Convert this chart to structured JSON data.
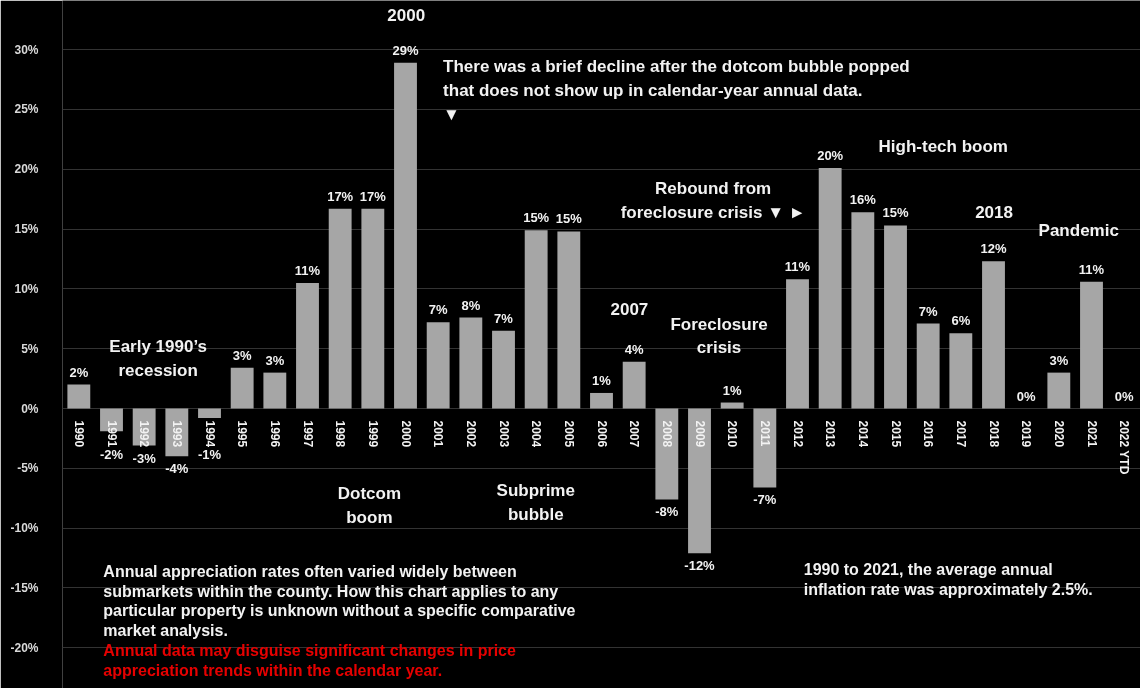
{
  "chart_data": {
    "type": "bar",
    "categories": [
      "1990",
      "1991",
      "1992",
      "1993",
      "1994",
      "1995",
      "1996",
      "1997",
      "1998",
      "1999",
      "2000",
      "2001",
      "2002",
      "2003",
      "2004",
      "2005",
      "2006",
      "2007",
      "2008",
      "2009",
      "2010",
      "2011",
      "2012",
      "2013",
      "2014",
      "2015",
      "2016",
      "2017",
      "2018",
      "2019",
      "2020",
      "2021",
      "2022 YTD"
    ],
    "values": [
      2.0,
      -1.9,
      -3.1,
      -4.0,
      -0.8,
      3.4,
      3.0,
      10.5,
      16.7,
      16.7,
      28.9,
      7.2,
      7.6,
      6.5,
      14.9,
      14.8,
      1.3,
      3.9,
      -7.6,
      -12.1,
      0.5,
      -6.6,
      10.8,
      20.1,
      16.4,
      15.3,
      7.1,
      6.3,
      12.3,
      0,
      3.0,
      10.6,
      0
    ],
    "value_labels": [
      "2%",
      "-2%",
      "-3%",
      "-4%",
      "-1%",
      "3%",
      "3%",
      "11%",
      "17%",
      "17%",
      "29%",
      "7%",
      "8%",
      "7%",
      "15%",
      "15%",
      "1%",
      "4%",
      "-8%",
      "-12%",
      "1%",
      "-7%",
      "11%",
      "20%",
      "16%",
      "15%",
      "7%",
      "6%",
      "12%",
      "0%",
      "3%",
      "11%",
      "0%"
    ],
    "color": "#a6a6a6",
    "ylim": [
      -23.4,
      34.1
    ],
    "yticks": [
      {
        "value": -20,
        "label": "-20%"
      },
      {
        "value": -15,
        "label": "-15%"
      },
      {
        "value": -10,
        "label": "-10%"
      },
      {
        "value": -5,
        "label": "-5%"
      },
      {
        "value": 0,
        "label": "0%"
      },
      {
        "value": 5,
        "label": "5%"
      },
      {
        "value": 10,
        "label": "10%"
      },
      {
        "value": 15,
        "label": "15%"
      },
      {
        "value": 20,
        "label": "20%"
      },
      {
        "value": 25,
        "label": "25%"
      },
      {
        "value": 30,
        "label": "30%"
      }
    ],
    "grid": "y",
    "annotations": [
      "2000",
      "There was a brief decline after the dotcom bubble popped\nthat does not show up in calendar-year annual data.\n▼",
      "Early 1990’s\nrecession",
      "Dotcom\nboom",
      "Subprime\nbubble",
      "2007",
      "Foreclosure\ncrisis",
      "Rebound from\nforeclosure crisis ▼ ►",
      "High-tech boom",
      "2018",
      "Pandemic",
      "Annual appreciation rates often varied widely between submarkets within the county. How this chart applies to any particular property is unknown without a specific comparative market analysis.",
      "Annual data may disguise significant changes in price appreciation trends within the calendar year.",
      "1990 to 2021, the average annual inflation rate was approximately 2.5%."
    ]
  }
}
